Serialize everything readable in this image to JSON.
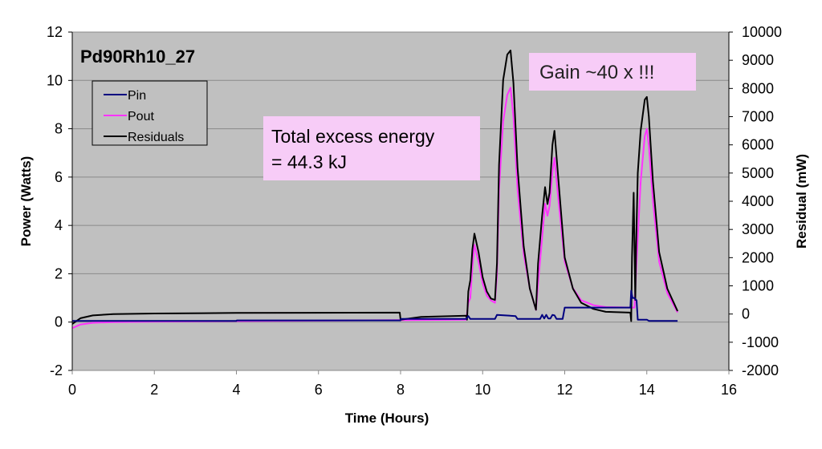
{
  "chart_data": {
    "type": "line",
    "title": "Pd90Rh10_27",
    "xlabel": "Time (Hours)",
    "ylabel": "Power (Watts)",
    "y2label": "Residual (mW)",
    "xlim": [
      0,
      16
    ],
    "ylim": [
      -2,
      12
    ],
    "y2lim": [
      -2000,
      10000
    ],
    "xticks": [
      0,
      2,
      4,
      6,
      8,
      10,
      12,
      14,
      16
    ],
    "yticks": [
      -2,
      0,
      2,
      4,
      6,
      8,
      10,
      12
    ],
    "y2ticks": [
      -2000,
      -1000,
      0,
      1000,
      2000,
      3000,
      4000,
      5000,
      6000,
      7000,
      8000,
      9000,
      10000
    ],
    "grid": "horizontal",
    "legend": {
      "placement": "top-left",
      "entries": [
        "Pin",
        "Pout",
        "Residuals"
      ]
    },
    "annotations": [
      "Total excess energy",
      "= 44.3 kJ",
      "Gain ~40 x !!!"
    ],
    "series": [
      {
        "name": "Pin",
        "axis": "left",
        "color": "#000080",
        "x": [
          0,
          4,
          4.01,
          8,
          8.01,
          9.6,
          9.65,
          9.7,
          9.75,
          9.8,
          10.1,
          10.15,
          10.3,
          10.35,
          10.8,
          10.85,
          11.4,
          11.45,
          11.5,
          11.55,
          11.6,
          11.65,
          11.7,
          11.75,
          11.8,
          11.95,
          12.0,
          13.6,
          13.62,
          13.65,
          13.7,
          13.75,
          13.78,
          14.0,
          14.05,
          14.75
        ],
        "y": [
          0.05,
          0.05,
          0.07,
          0.07,
          0.13,
          0.13,
          0.25,
          0.13,
          0.13,
          0.13,
          0.13,
          0.13,
          0.13,
          0.3,
          0.25,
          0.13,
          0.13,
          0.3,
          0.15,
          0.3,
          0.15,
          0.15,
          0.3,
          0.28,
          0.13,
          0.13,
          0.6,
          0.6,
          1.3,
          1.0,
          1.0,
          0.9,
          0.1,
          0.1,
          0.05,
          0.05
        ]
      },
      {
        "name": "Pout",
        "axis": "left",
        "color": "#ff33ff",
        "x": [
          0,
          0.2,
          0.5,
          1,
          2,
          4,
          8,
          9.6,
          9.65,
          9.7,
          9.75,
          9.8,
          9.9,
          10.0,
          10.1,
          10.2,
          10.3,
          10.35,
          10.4,
          10.5,
          10.6,
          10.68,
          10.75,
          10.85,
          11.0,
          11.15,
          11.3,
          11.35,
          11.45,
          11.52,
          11.58,
          11.63,
          11.7,
          11.75,
          11.85,
          12.0,
          12.2,
          12.4,
          12.7,
          13.0,
          13.6,
          13.65,
          13.7,
          13.75,
          13.85,
          13.95,
          14.0,
          14.05,
          14.15,
          14.3,
          14.5,
          14.75
        ],
        "y": [
          -0.25,
          -0.1,
          -0.03,
          0,
          0.02,
          0.04,
          0.08,
          0.1,
          0.8,
          1.0,
          2.3,
          3.2,
          2.5,
          1.6,
          1.1,
          0.9,
          0.8,
          2.0,
          5.5,
          8.3,
          9.4,
          9.7,
          8.5,
          5.5,
          2.8,
          1.4,
          0.5,
          1.6,
          3.5,
          4.9,
          4.4,
          4.8,
          6.2,
          6.8,
          5.0,
          2.5,
          1.4,
          0.9,
          0.7,
          0.62,
          0.6,
          0.6,
          0.6,
          2.5,
          5.8,
          7.7,
          8.0,
          7.3,
          5.0,
          2.5,
          1.2,
          0.4
        ]
      },
      {
        "name": "Residuals",
        "axis": "right",
        "color": "#000000",
        "x": [
          0,
          0.2,
          0.5,
          1,
          2,
          4,
          7.98,
          8.0,
          8.5,
          9.6,
          9.62,
          9.65,
          9.7,
          9.75,
          9.8,
          9.9,
          10.0,
          10.1,
          10.2,
          10.3,
          10.35,
          10.4,
          10.5,
          10.6,
          10.68,
          10.75,
          10.85,
          11.0,
          11.15,
          11.3,
          11.35,
          11.45,
          11.52,
          11.58,
          11.63,
          11.7,
          11.75,
          11.85,
          12.0,
          12.2,
          12.4,
          12.7,
          13.0,
          13.6,
          13.62,
          13.64,
          13.68,
          13.72,
          13.74,
          13.78,
          13.85,
          13.95,
          14.0,
          14.05,
          14.15,
          14.3,
          14.5,
          14.75
        ],
        "y": [
          -350,
          -150,
          -50,
          0,
          20,
          40,
          50,
          -200,
          -100,
          -60,
          -200,
          800,
          1200,
          2300,
          2850,
          2200,
          1300,
          800,
          550,
          500,
          1800,
          5300,
          8300,
          9200,
          9350,
          8200,
          5200,
          2400,
          900,
          150,
          1800,
          3500,
          4500,
          3900,
          4300,
          6000,
          6500,
          4700,
          2000,
          900,
          400,
          180,
          80,
          50,
          -250,
          2000,
          4300,
          500,
          2500,
          5000,
          6500,
          7600,
          7700,
          7000,
          4700,
          2200,
          900,
          100
        ]
      }
    ]
  }
}
